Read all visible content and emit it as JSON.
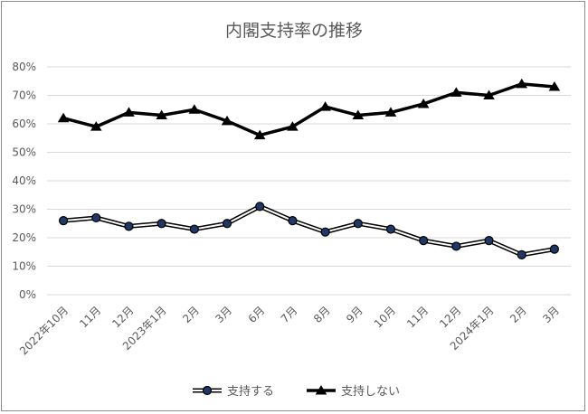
{
  "chart_data": {
    "type": "line",
    "title": "内閣支持率の推移",
    "xlabel": "",
    "ylabel": "",
    "ylim": [
      0,
      80
    ],
    "yticks": [
      "0%",
      "10%",
      "20%",
      "30%",
      "40%",
      "50%",
      "60%",
      "70%",
      "80%"
    ],
    "grid": true,
    "legend_position": "bottom",
    "categories": [
      "2022年10月",
      "11月",
      "12月",
      "2023年1月",
      "2月",
      "3月",
      "6月",
      "7月",
      "8月",
      "9月",
      "10月",
      "11月",
      "12月",
      "2024年1月",
      "2月",
      "3月"
    ],
    "series": [
      {
        "name": "支持する",
        "values": [
          26,
          27,
          24,
          25,
          23,
          25,
          31,
          26,
          22,
          25,
          23,
          19,
          17,
          19,
          14,
          16
        ],
        "line_color": "#000000",
        "marker": "circle",
        "marker_fill": "#1f3864"
      },
      {
        "name": "支持しない",
        "values": [
          62,
          59,
          64,
          63,
          65,
          61,
          56,
          59,
          66,
          63,
          64,
          67,
          71,
          70,
          74,
          73
        ],
        "line_color": "#000000",
        "marker": "triangle",
        "marker_fill": "#000000"
      }
    ]
  }
}
